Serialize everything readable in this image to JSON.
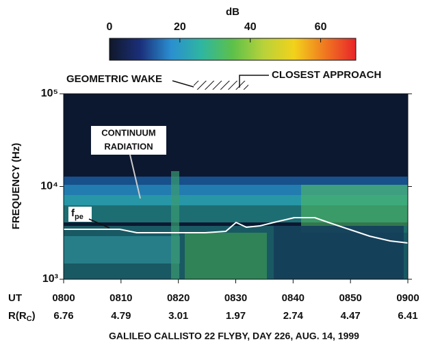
{
  "chart_data": {
    "type": "spectrogram",
    "colorbar": {
      "label": "dB",
      "lim": [
        0,
        70
      ],
      "ticks": [
        0,
        20,
        40,
        60
      ],
      "colormap": [
        "#101828",
        "#1b2f7a",
        "#2a8fd0",
        "#2fb6a0",
        "#5cc04a",
        "#b8d23a",
        "#f2d21b",
        "#f07820",
        "#e8252a"
      ]
    },
    "ylabel": "FREQUENCY (Hz)",
    "ylim": [
      1000,
      100000
    ],
    "log_y": true,
    "yticks": [
      {
        "value": 1000,
        "label": "10³"
      },
      {
        "value": 10000,
        "label": "10⁴"
      },
      {
        "value": 100000,
        "label": "10⁵"
      }
    ],
    "x_label": "UT",
    "categories": [
      "0800",
      "0810",
      "0820",
      "0830",
      "0840",
      "0850",
      "0900"
    ],
    "r_label": [
      "R(R",
      "C",
      ")"
    ],
    "r_values": [
      6.76,
      4.79,
      3.01,
      1.97,
      2.74,
      4.47,
      6.41
    ],
    "annotations": {
      "wake": "GEOMETRIC WAKE",
      "closest": "CLOSEST APPROACH",
      "continuum": [
        "CONTINUUM",
        "RADIATION"
      ],
      "fpe": [
        "f",
        "pe"
      ]
    },
    "title": "GALILEO  CALLISTO 22 FLYBY,  DAY 226,  AUG. 14,  1999"
  }
}
